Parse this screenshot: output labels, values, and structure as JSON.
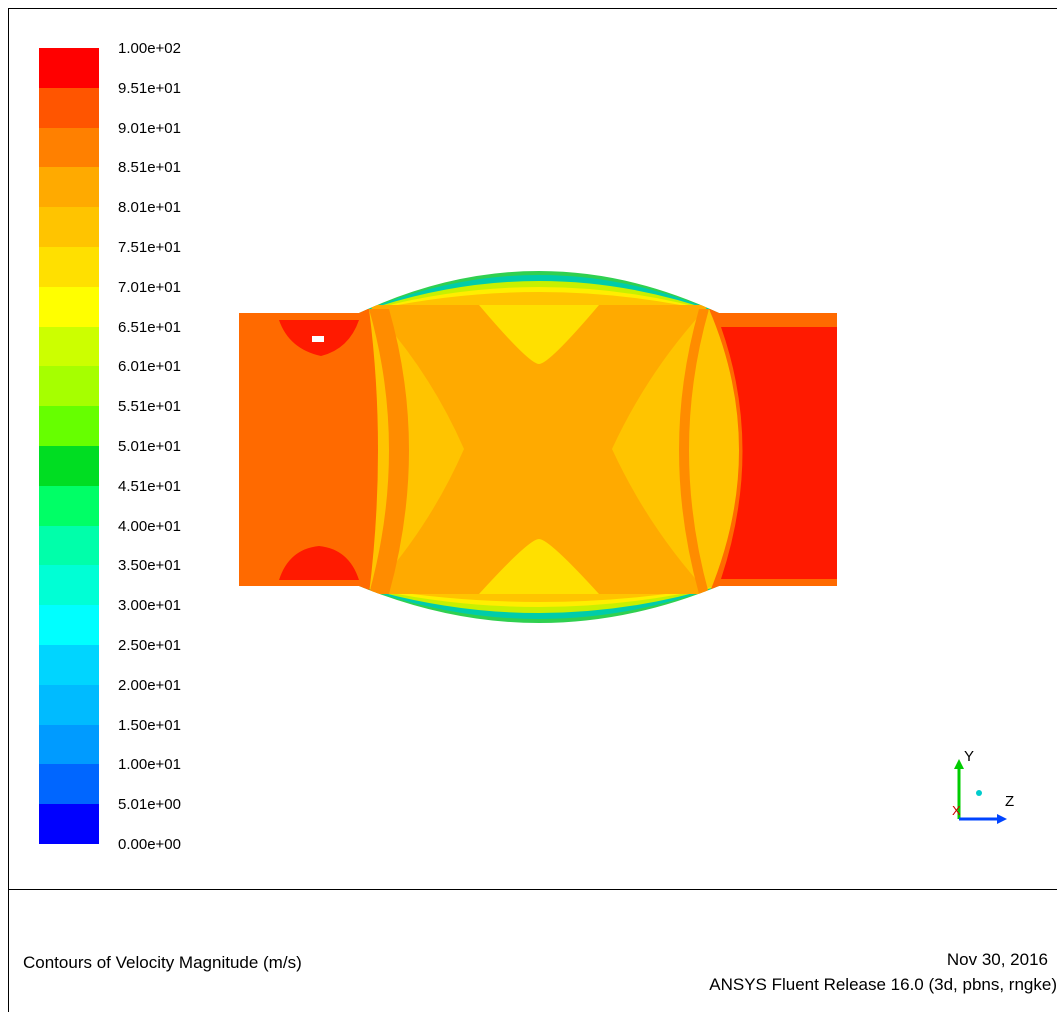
{
  "legend": {
    "ticks": [
      "1.00e+02",
      "9.51e+01",
      "9.01e+01",
      "8.51e+01",
      "8.01e+01",
      "7.51e+01",
      "7.01e+01",
      "6.51e+01",
      "6.01e+01",
      "5.51e+01",
      "5.01e+01",
      "4.51e+01",
      "4.00e+01",
      "3.50e+01",
      "3.00e+01",
      "2.50e+01",
      "2.00e+01",
      "1.50e+01",
      "1.00e+01",
      "5.01e+00",
      "0.00e+00"
    ],
    "colors": [
      "#ff0000",
      "#ff5500",
      "#ff8000",
      "#ffaa00",
      "#ffc400",
      "#ffe000",
      "#ffff00",
      "#ccff00",
      "#a6ff00",
      "#66ff00",
      "#00dd22",
      "#00ff66",
      "#00ffaa",
      "#00ffd5",
      "#00ffff",
      "#00d5ff",
      "#00bbff",
      "#009bff",
      "#0066ff",
      "#0000ff"
    ]
  },
  "axes": {
    "y_label": "Y",
    "z_label": "Z",
    "x_label": "X"
  },
  "footer": {
    "title": "Contours of Velocity Magnitude (m/s)",
    "date": "Nov 30, 2016",
    "release": "ANSYS Fluent Release 16.0 (3d, pbns, rngke)"
  }
}
